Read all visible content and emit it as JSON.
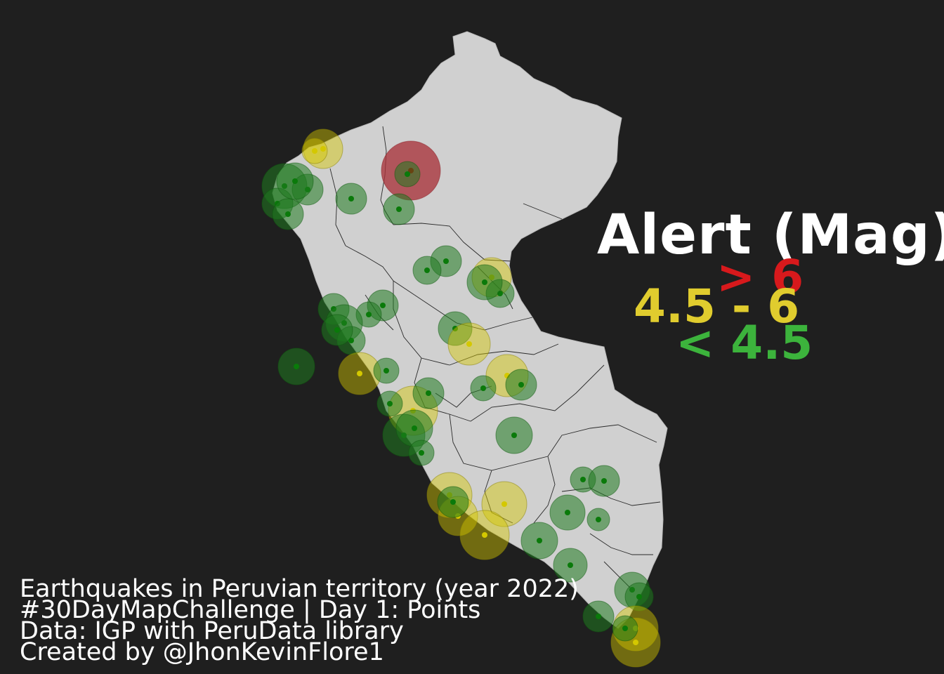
{
  "map": {
    "country": "Peru",
    "colors": {
      "background": "#1f1f1f",
      "land": "#d0d0d0",
      "borders": "#222222",
      "high": "#d7191c",
      "medium": "#e0cc2e",
      "low": "#3cb33c",
      "marker_low": "#0a7a0a",
      "marker_medium": "#d4c800"
    },
    "legend": {
      "title": "Alert (Mag)",
      "high_label": "> 6",
      "medium_label": "4.5 - 6",
      "low_label": "< 4.5"
    },
    "credits": [
      "Earthquakes in Peruvian territory (year 2022)",
      "#30DayMapChallenge | Day 1: Points",
      "Data: IGP with PeruData library",
      "Created by @JhonKevinFlore1"
    ]
  }
}
